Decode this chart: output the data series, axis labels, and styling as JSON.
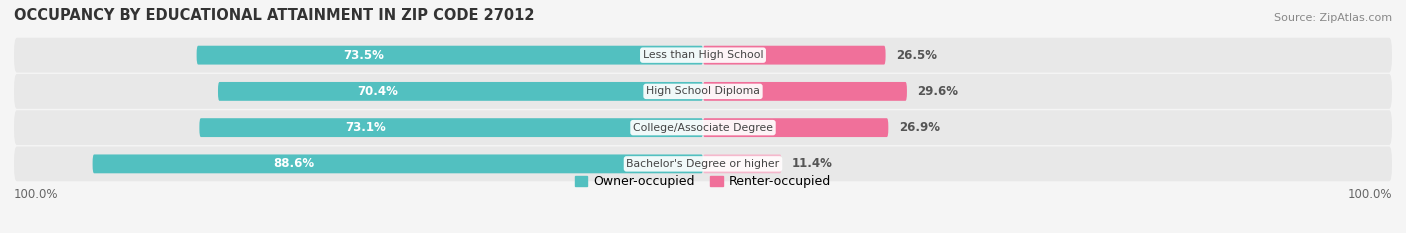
{
  "title": "OCCUPANCY BY EDUCATIONAL ATTAINMENT IN ZIP CODE 27012",
  "source": "Source: ZipAtlas.com",
  "categories": [
    "Less than High School",
    "High School Diploma",
    "College/Associate Degree",
    "Bachelor's Degree or higher"
  ],
  "owner_values": [
    73.5,
    70.4,
    73.1,
    88.6
  ],
  "renter_values": [
    26.5,
    29.6,
    26.9,
    11.4
  ],
  "owner_color": "#52c0c0",
  "renter_colors": [
    "#f0709a",
    "#f0709a",
    "#f0709a",
    "#f5b8cc"
  ],
  "row_bg_color": "#e8e8e8",
  "background_color": "#f5f5f5",
  "title_fontsize": 10.5,
  "source_fontsize": 8,
  "label_fontsize": 8.5,
  "legend_fontsize": 9
}
